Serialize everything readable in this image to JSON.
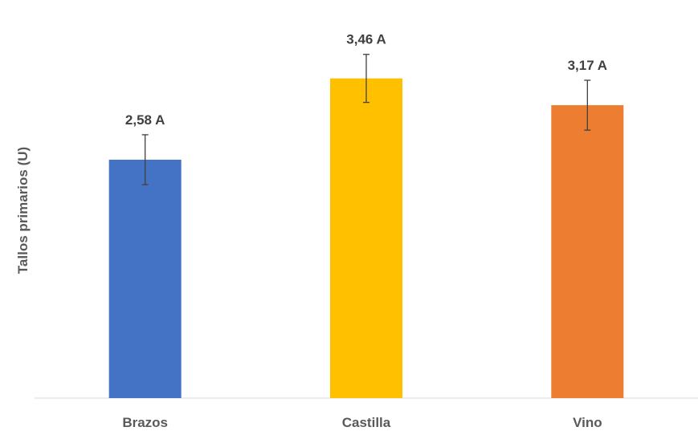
{
  "chart_data": {
    "type": "bar",
    "categories": [
      "Brazos",
      "Castilla",
      "Vino"
    ],
    "values": [
      2.58,
      3.46,
      3.17
    ],
    "errors": [
      0.27,
      0.26,
      0.27
    ],
    "data_labels": [
      "2,58 A",
      "3,46 A",
      "3,17 A"
    ],
    "colors": [
      "#4472C4",
      "#FFC000",
      "#ED7D31"
    ],
    "title": "",
    "xlabel": "",
    "ylabel": "Tallos primarios (U)",
    "ylim": [
      0,
      4.1
    ],
    "grid": false,
    "legend": false
  }
}
